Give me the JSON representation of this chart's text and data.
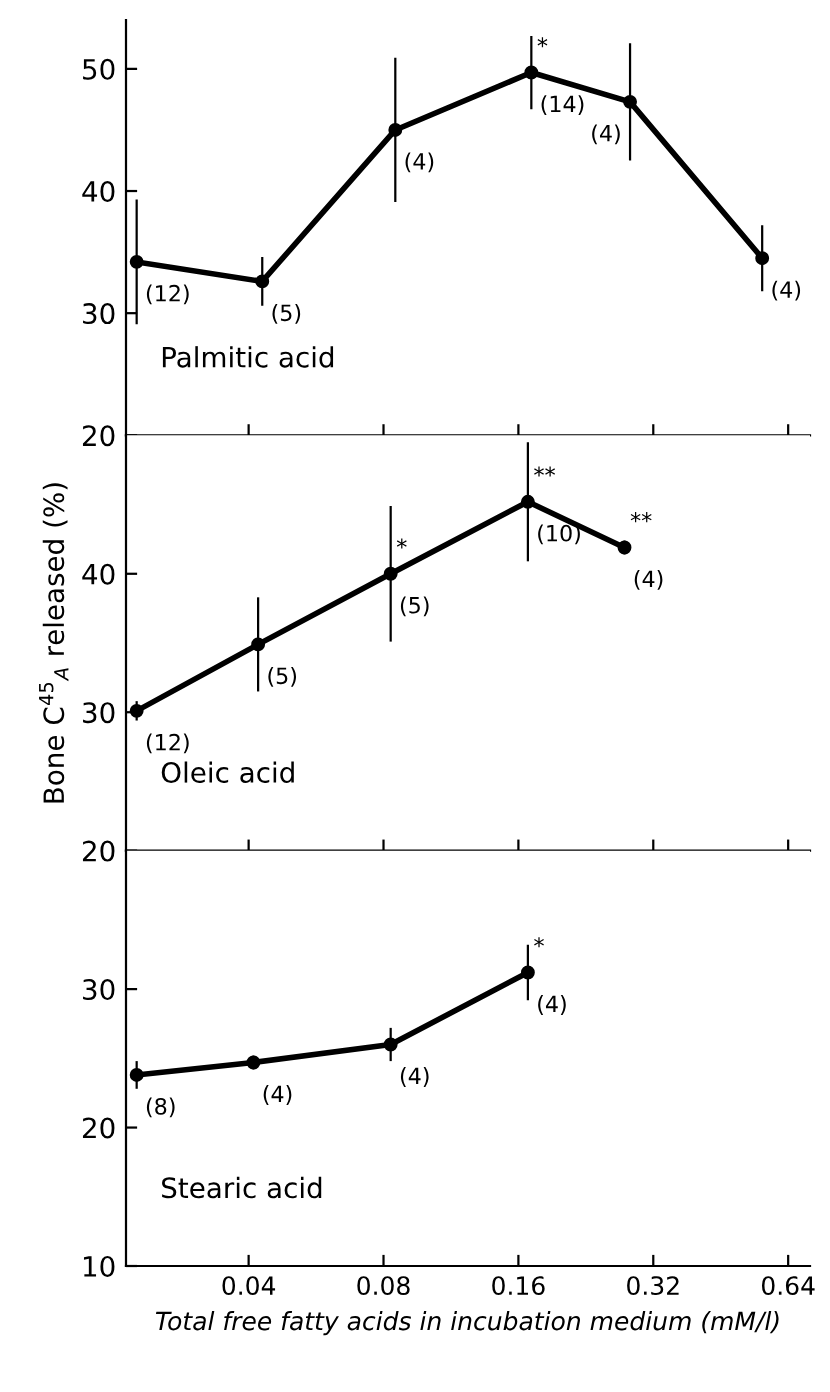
{
  "chart_data": [
    {
      "type": "line",
      "title": "Palmitic acid",
      "x": [
        0.0225,
        0.0429,
        0.085,
        0.171,
        0.284,
        0.56
      ],
      "series": [
        {
          "color": "#000000",
          "values": [
            34.2,
            32.6,
            45.0,
            49.7,
            47.3,
            34.5
          ],
          "errors": [
            5.1,
            2.0,
            5.9,
            3.0,
            4.8,
            2.7
          ]
        }
      ],
      "xlim": [
        0.0213,
        0.716
      ],
      "xticks": [
        0.04,
        0.08,
        0.16,
        0.32,
        0.64
      ],
      "log": "x",
      "ylim": [
        20,
        54
      ],
      "yticks": [
        20,
        30,
        40,
        50
      ],
      "tick_labels": "y",
      "marker": "circle",
      "line_style": "solid",
      "grid": false,
      "annotations": [
        {
          "text": "(12)",
          "x": 0.0225,
          "y": 34.2
        },
        {
          "text": "(5)",
          "x": 0.0429,
          "y": 32.6
        },
        {
          "text": "(4)",
          "x": 0.085,
          "y": 45.0
        },
        {
          "text": "*",
          "x": 0.171,
          "y": 49.7
        },
        {
          "text": "(14)",
          "x": 0.171,
          "y": 49.7
        },
        {
          "text": "(4)",
          "x": 0.284,
          "y": 47.3
        },
        {
          "text": "(4)",
          "x": 0.56,
          "y": 34.5
        }
      ]
    },
    {
      "type": "line",
      "title": "Oleic acid",
      "ylabel": "Bone C$^{45}$$_{A}$ released (%)",
      "x": [
        0.0225,
        0.042,
        0.083,
        0.168,
        0.276
      ],
      "series": [
        {
          "color": "#000000",
          "values": [
            30.1,
            34.9,
            40.0,
            45.2,
            41.9
          ],
          "errors": [
            0.7,
            3.4,
            4.9,
            4.3,
            0.5
          ]
        }
      ],
      "xlim": [
        0.0213,
        0.716
      ],
      "xticks": [
        0.04,
        0.08,
        0.16,
        0.32,
        0.64
      ],
      "log": "x",
      "ylim": [
        20,
        50
      ],
      "yticks": [
        20,
        30,
        40
      ],
      "tick_labels": "y",
      "marker": "circle",
      "line_style": "solid",
      "grid": false,
      "annotations": [
        {
          "text": "(12)",
          "x": 0.0225,
          "y": 30.1
        },
        {
          "text": "(5)",
          "x": 0.042,
          "y": 34.9
        },
        {
          "text": "*",
          "x": 0.083,
          "y": 40.0
        },
        {
          "text": "(5)",
          "x": 0.083,
          "y": 40.0
        },
        {
          "text": "**",
          "x": 0.168,
          "y": 45.2
        },
        {
          "text": "(10)",
          "x": 0.168,
          "y": 45.2
        },
        {
          "text": "**",
          "x": 0.276,
          "y": 41.9
        },
        {
          "text": "(4)",
          "x": 0.276,
          "y": 41.9
        }
      ]
    },
    {
      "type": "line",
      "title": "Stearic acid",
      "xlabel": "Total free fatty acids in incubation medium (mM/l)",
      "x": [
        0.0225,
        0.041,
        0.083,
        0.168
      ],
      "series": [
        {
          "color": "#000000",
          "values": [
            23.8,
            24.7,
            26.0,
            31.2
          ],
          "errors": [
            1.0,
            0.5,
            1.2,
            2.0
          ]
        }
      ],
      "xlim": [
        0.0213,
        0.716
      ],
      "xticks": [
        0.04,
        0.08,
        0.16,
        0.32,
        0.64
      ],
      "log": "x",
      "ylim": [
        10,
        40
      ],
      "yticks": [
        10,
        20,
        30
      ],
      "marker": "circle",
      "line_style": "solid",
      "grid": false,
      "annotations": [
        {
          "text": "(8)",
          "x": 0.0225,
          "y": 23.8
        },
        {
          "text": "(4)",
          "x": 0.041,
          "y": 24.7
        },
        {
          "text": "(4)",
          "x": 0.083,
          "y": 26.0
        },
        {
          "text": "*",
          "x": 0.168,
          "y": 31.2
        },
        {
          "text": "(4)",
          "x": 0.168,
          "y": 31.2
        }
      ]
    }
  ]
}
